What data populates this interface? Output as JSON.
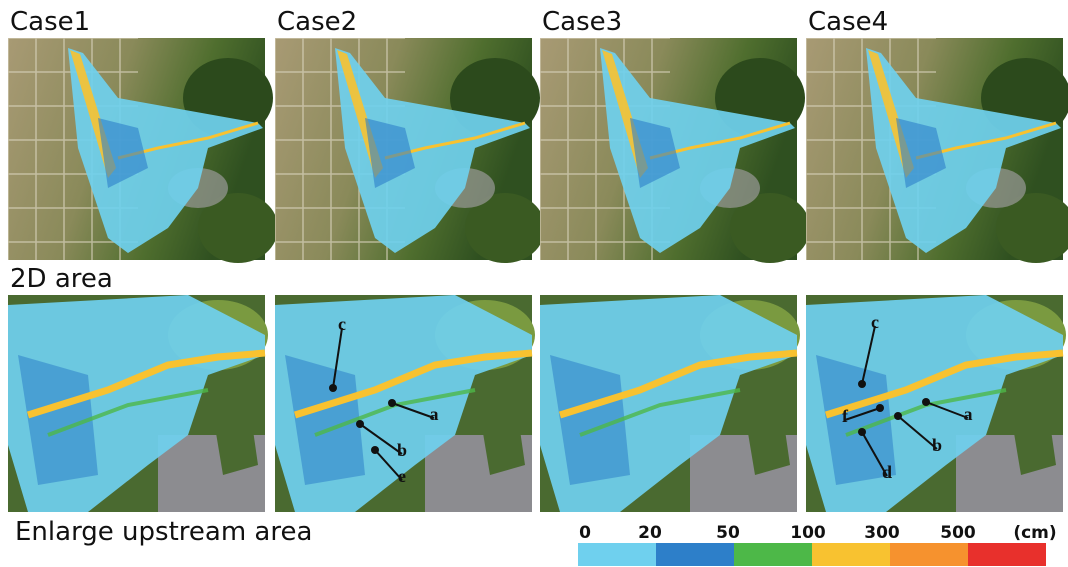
{
  "top_row": {
    "titles": [
      "Case1",
      "Case2",
      "Case3",
      "Case4"
    ]
  },
  "middle_label": "2D area",
  "bottom_label": "Enlarge upstream area",
  "annotations": {
    "case2": [
      "c",
      "a",
      "b",
      "e"
    ],
    "case4": [
      "c",
      "f",
      "a",
      "b",
      "d"
    ]
  },
  "legend": {
    "ticks": [
      0,
      20,
      50,
      100,
      300,
      500
    ],
    "unit": "(cm)",
    "colors": [
      "#6fd0ee",
      "#2d7fc9",
      "#4db848",
      "#f8c230",
      "#f6922e",
      "#e8302c"
    ]
  }
}
